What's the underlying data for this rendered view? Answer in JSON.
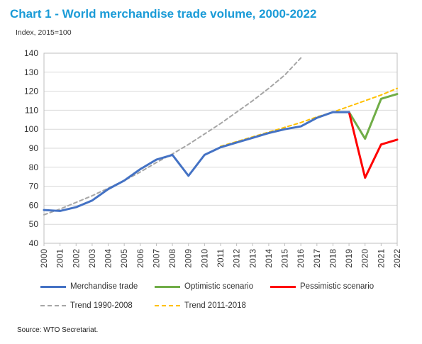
{
  "title": "Chart 1 - World merchandise trade volume, 2000-2022",
  "subtitle": "Index, 2015=100",
  "source": "Source:   WTO Secretariat.",
  "colors": {
    "merchandise": "#4472c4",
    "optimistic": "#70ad47",
    "pessimistic": "#ff0000",
    "trend1990": "#a6a6a6",
    "trend2011": "#ffc000",
    "grid": "#d9d9d9",
    "title": "#1a9bd7"
  },
  "legend": {
    "merchandise": "Merchandise trade",
    "optimistic": "Optimistic scenario",
    "pessimistic": "Pessimistic scenario",
    "trend1990": "Trend 1990-2008",
    "trend2011": "Trend 2011-2018"
  },
  "chart_data": {
    "type": "line",
    "title": "Chart 1 - World merchandise trade volume, 2000-2022",
    "ylabel": "Index, 2015=100",
    "ylim": [
      40,
      140
    ],
    "yticks": [
      40,
      50,
      60,
      70,
      80,
      90,
      100,
      110,
      120,
      130,
      140
    ],
    "x": [
      "2000",
      "2001",
      "2002",
      "2003",
      "2004",
      "2005",
      "2006",
      "2007",
      "2008",
      "2009",
      "2010",
      "2011",
      "2012",
      "2013",
      "2014",
      "2015",
      "2016",
      "2017",
      "2018",
      "2019",
      "2020",
      "2021",
      "2022"
    ],
    "grid": true,
    "legend_position": "bottom",
    "series": [
      {
        "key": "merchandise",
        "name": "Merchandise trade",
        "style": "solid",
        "points": [
          [
            "2000",
            57.5
          ],
          [
            "2001",
            57
          ],
          [
            "2002",
            59
          ],
          [
            "2003",
            62.5
          ],
          [
            "2004",
            68.5
          ],
          [
            "2005",
            73
          ],
          [
            "2006",
            79
          ],
          [
            "2007",
            84
          ],
          [
            "2008",
            86.5
          ],
          [
            "2009",
            75.5
          ],
          [
            "2010",
            86.5
          ],
          [
            "2011",
            90.5
          ],
          [
            "2012",
            93
          ],
          [
            "2013",
            95.5
          ],
          [
            "2014",
            98
          ],
          [
            "2015",
            100
          ],
          [
            "2016",
            101.5
          ],
          [
            "2017",
            106
          ],
          [
            "2018",
            109
          ],
          [
            "2019",
            109
          ]
        ]
      },
      {
        "key": "optimistic",
        "name": "Optimistic scenario",
        "style": "solid",
        "points": [
          [
            "2019",
            109
          ],
          [
            "2020",
            95
          ],
          [
            "2021",
            116
          ],
          [
            "2022",
            118.5
          ]
        ]
      },
      {
        "key": "pessimistic",
        "name": "Pessimistic scenario",
        "style": "solid",
        "points": [
          [
            "2019",
            109
          ],
          [
            "2020",
            74.5
          ],
          [
            "2021",
            92
          ],
          [
            "2022",
            94.5
          ]
        ]
      },
      {
        "key": "trend1990",
        "name": "Trend 1990-2008",
        "style": "dashed",
        "points": [
          [
            "2000",
            55
          ],
          [
            "2001",
            58
          ],
          [
            "2002",
            61.5
          ],
          [
            "2003",
            65
          ],
          [
            "2004",
            69
          ],
          [
            "2005",
            73
          ],
          [
            "2006",
            77.5
          ],
          [
            "2007",
            82.5
          ],
          [
            "2008",
            87
          ],
          [
            "2009",
            92
          ],
          [
            "2010",
            97.5
          ],
          [
            "2011",
            103
          ],
          [
            "2012",
            109
          ],
          [
            "2013",
            115
          ],
          [
            "2014",
            121.5
          ],
          [
            "2015",
            128.5
          ],
          [
            "2016",
            137.5
          ]
        ]
      },
      {
        "key": "trend2011",
        "name": "Trend 2011-2018",
        "style": "dashed",
        "points": [
          [
            "2011",
            91
          ],
          [
            "2012",
            93.5
          ],
          [
            "2013",
            96
          ],
          [
            "2014",
            98.5
          ],
          [
            "2015",
            101
          ],
          [
            "2016",
            103.5
          ],
          [
            "2017",
            106.5
          ],
          [
            "2018",
            109
          ],
          [
            "2019",
            112
          ],
          [
            "2020",
            115
          ],
          [
            "2021",
            118
          ],
          [
            "2022",
            121.5
          ]
        ]
      }
    ]
  }
}
